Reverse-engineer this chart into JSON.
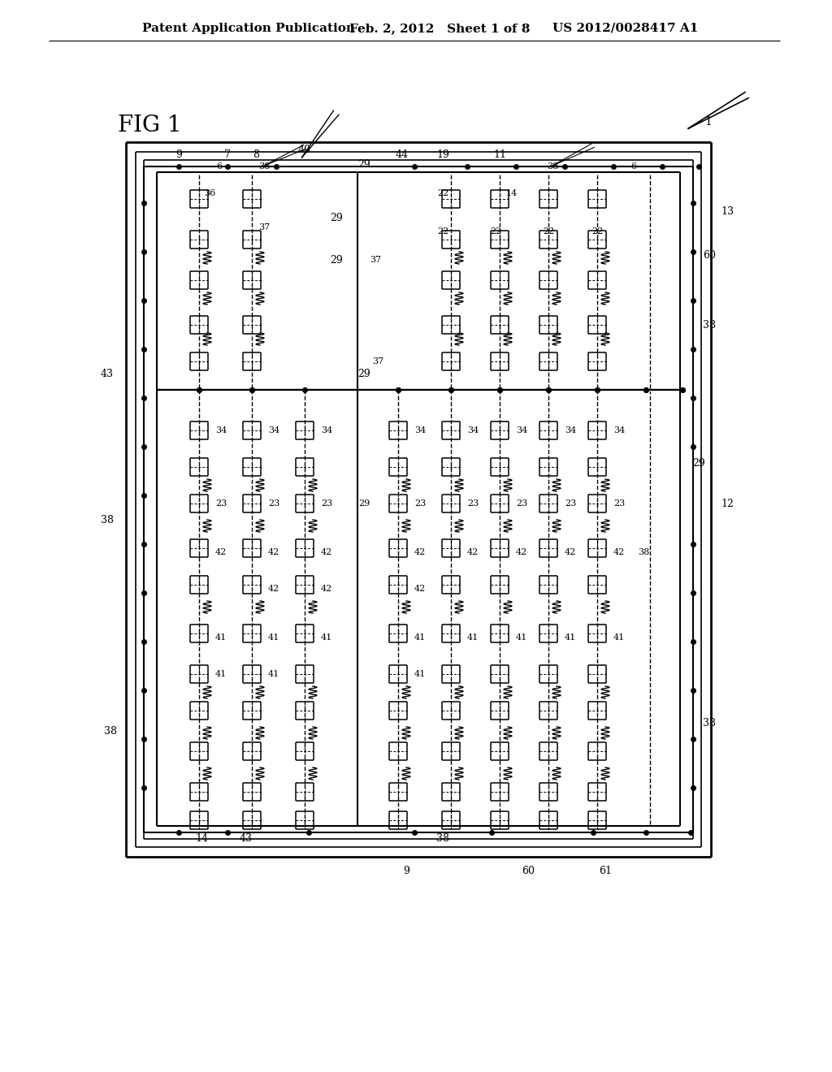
{
  "bg_color": "#ffffff",
  "lc": "#000000",
  "header_left": "Patent Application Publication",
  "header_mid": "Feb. 2, 2012   Sheet 1 of 8",
  "header_right": "US 2012/0028417 A1"
}
